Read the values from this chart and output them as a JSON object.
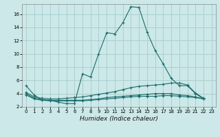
{
  "xlabel": "Humidex (Indice chaleur)",
  "bg_color": "#cce8e8",
  "grid_color": "#aacfcf",
  "line_color": "#1a6b6b",
  "xlim": [
    -0.5,
    23.5
  ],
  "ylim": [
    2,
    17.5
  ],
  "xticks": [
    0,
    1,
    2,
    3,
    4,
    5,
    6,
    7,
    8,
    9,
    10,
    11,
    12,
    13,
    14,
    15,
    16,
    17,
    18,
    19,
    20,
    21,
    22,
    23
  ],
  "yticks": [
    2,
    4,
    6,
    8,
    10,
    12,
    14,
    16
  ],
  "series": [
    [
      5.2,
      3.8,
      3.0,
      3.0,
      2.7,
      2.5,
      2.5,
      7.0,
      6.5,
      10.0,
      13.2,
      13.0,
      14.7,
      17.1,
      17.0,
      13.3,
      10.5,
      8.5,
      6.3,
      5.2,
      5.2,
      4.0,
      3.2
    ],
    [
      4.2,
      3.5,
      3.3,
      3.2,
      3.2,
      3.3,
      3.4,
      3.5,
      3.7,
      3.9,
      4.1,
      4.3,
      4.6,
      4.9,
      5.1,
      5.2,
      5.3,
      5.4,
      5.6,
      5.6,
      5.3,
      4.1,
      3.3
    ],
    [
      4.0,
      3.3,
      3.1,
      3.0,
      3.0,
      3.0,
      3.0,
      3.0,
      3.1,
      3.2,
      3.4,
      3.5,
      3.6,
      3.7,
      3.8,
      3.9,
      4.0,
      4.0,
      4.0,
      3.8,
      3.7,
      3.5,
      3.2
    ],
    [
      3.8,
      3.2,
      3.0,
      2.9,
      2.9,
      2.9,
      2.9,
      2.9,
      3.0,
      3.1,
      3.2,
      3.3,
      3.4,
      3.5,
      3.6,
      3.6,
      3.6,
      3.7,
      3.7,
      3.6,
      3.5,
      3.4,
      3.2
    ]
  ],
  "xlabel_fontsize": 6.5,
  "tick_fontsize": 5.0
}
